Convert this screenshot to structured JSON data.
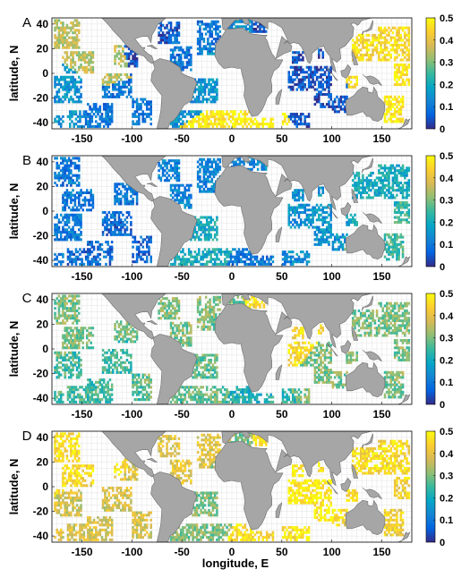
{
  "figure": {
    "xlabel": "longitude, E",
    "ylabel": "latitude, N"
  },
  "colorbar": {
    "colormap": "parula",
    "stops": [
      "#352a87",
      "#0363e1",
      "#1485d4",
      "#06a7c6",
      "#38b99e",
      "#92bf73",
      "#d9ba56",
      "#fcce2e",
      "#f9fb0e"
    ]
  },
  "colors": {
    "land": "#a6a6a6",
    "land_edge": "#6e6e6e",
    "grid": "#e2e2e2",
    "frame": "#000000",
    "saturated_edge": "#c0211a"
  },
  "chart_data": [
    {
      "type": "heatmap",
      "panel_label": "A",
      "xlabel": "",
      "ylabel": "latitude, N",
      "xlim": [
        -180,
        180
      ],
      "ylim": [
        -45,
        45
      ],
      "xticks": [
        -150,
        -100,
        -50,
        0,
        50,
        100,
        150
      ],
      "yticks": [
        -40,
        -20,
        0,
        20,
        40
      ],
      "colorbar_ticks": [
        0,
        0.1,
        0.2,
        0.3,
        0.4,
        0.5
      ],
      "clim": [
        0,
        0.5
      ],
      "grid": true,
      "approximate_regions": [
        {
          "lon": -140,
          "lat": 10,
          "value": 0.35
        },
        {
          "lon": -160,
          "lat": -20,
          "value": 0.15
        },
        {
          "lon": -130,
          "lat": -35,
          "value": 0.1
        },
        {
          "lon": -80,
          "lat": 30,
          "value": 0.05
        },
        {
          "lon": -60,
          "lat": 10,
          "value": 0.1
        },
        {
          "lon": -30,
          "lat": -20,
          "value": 0.15
        },
        {
          "lon": -20,
          "lat": -40,
          "value": 0.48
        },
        {
          "lon": 20,
          "lat": -42,
          "value": 0.5
        },
        {
          "lon": 80,
          "lat": -10,
          "value": 0.05
        },
        {
          "lon": 130,
          "lat": 20,
          "value": 0.45
        },
        {
          "lon": 160,
          "lat": -35,
          "value": 0.48
        }
      ]
    },
    {
      "type": "heatmap",
      "panel_label": "B",
      "xlabel": "",
      "ylabel": "latitude, N",
      "xlim": [
        -180,
        180
      ],
      "ylim": [
        -45,
        45
      ],
      "xticks": [
        -150,
        -100,
        -50,
        0,
        50,
        100,
        150
      ],
      "yticks": [
        -40,
        -20,
        0,
        20,
        40
      ],
      "colorbar_ticks": [
        0,
        0.1,
        0.2,
        0.3,
        0.4,
        0.5
      ],
      "clim": [
        0,
        0.5
      ],
      "grid": true,
      "approximate_regions": [
        {
          "lon": -140,
          "lat": 0,
          "value": 0.1
        },
        {
          "lon": -120,
          "lat": -30,
          "value": 0.08
        },
        {
          "lon": -40,
          "lat": 20,
          "value": 0.12
        },
        {
          "lon": -20,
          "lat": -20,
          "value": 0.2
        },
        {
          "lon": 20,
          "lat": -40,
          "value": 0.1
        },
        {
          "lon": 80,
          "lat": -10,
          "value": 0.15
        },
        {
          "lon": 130,
          "lat": 20,
          "value": 0.2
        },
        {
          "lon": 150,
          "lat": -30,
          "value": 0.25
        }
      ]
    },
    {
      "type": "heatmap",
      "panel_label": "C",
      "xlabel": "",
      "ylabel": "latitude, N",
      "xlim": [
        -180,
        180
      ],
      "ylim": [
        -45,
        45
      ],
      "xticks": [
        -150,
        -100,
        -50,
        0,
        50,
        100,
        150
      ],
      "yticks": [
        -40,
        -20,
        0,
        20,
        40
      ],
      "colorbar_ticks": [
        0,
        0.1,
        0.2,
        0.3,
        0.4,
        0.5
      ],
      "clim": [
        0,
        0.5
      ],
      "grid": true,
      "approximate_regions": [
        {
          "lon": -150,
          "lat": 20,
          "value": 0.3
        },
        {
          "lon": -140,
          "lat": -20,
          "value": 0.25
        },
        {
          "lon": -60,
          "lat": 10,
          "value": 0.3
        },
        {
          "lon": -20,
          "lat": -20,
          "value": 0.28
        },
        {
          "lon": 20,
          "lat": -42,
          "value": 0.22
        },
        {
          "lon": 70,
          "lat": 10,
          "value": 0.45
        },
        {
          "lon": 90,
          "lat": -10,
          "value": 0.3
        },
        {
          "lon": 140,
          "lat": -20,
          "value": 0.3
        }
      ]
    },
    {
      "type": "heatmap",
      "panel_label": "D",
      "xlabel": "longitude, E",
      "ylabel": "latitude, N",
      "xlim": [
        -180,
        180
      ],
      "ylim": [
        -45,
        45
      ],
      "xticks": [
        -150,
        -100,
        -50,
        0,
        50,
        100,
        150
      ],
      "yticks": [
        -40,
        -20,
        0,
        20,
        40
      ],
      "colorbar_ticks": [
        0,
        0.1,
        0.2,
        0.3,
        0.4,
        0.5
      ],
      "clim": [
        0,
        0.5
      ],
      "grid": true,
      "approximate_regions": [
        {
          "lon": -150,
          "lat": 20,
          "value": 0.45
        },
        {
          "lon": -140,
          "lat": -20,
          "value": 0.38
        },
        {
          "lon": -60,
          "lat": 20,
          "value": 0.4
        },
        {
          "lon": -20,
          "lat": -20,
          "value": 0.3
        },
        {
          "lon": 20,
          "lat": -42,
          "value": 0.45
        },
        {
          "lon": 80,
          "lat": 0,
          "value": 0.48
        },
        {
          "lon": 130,
          "lat": 20,
          "value": 0.45
        },
        {
          "lon": 150,
          "lat": -35,
          "value": 0.42
        }
      ]
    }
  ]
}
